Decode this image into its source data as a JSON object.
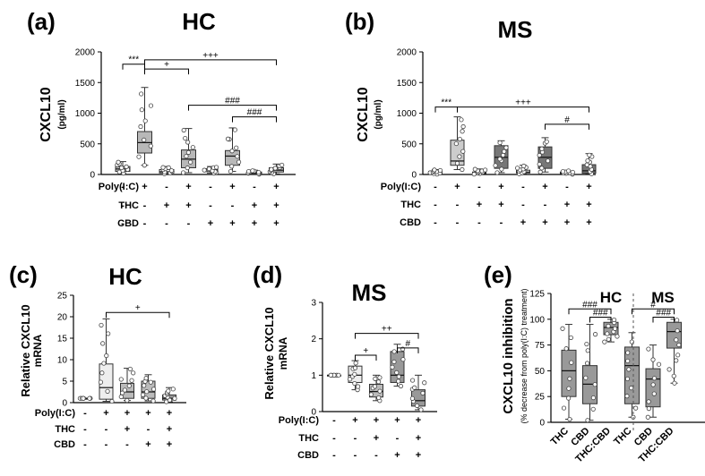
{
  "chart_data": [
    {
      "panel": "(a)",
      "title": "HC",
      "type": "box",
      "ylabel": "CXCL10",
      "yunit": "(pg/ml)",
      "ylim": [
        0,
        2000
      ],
      "yticks": [
        0,
        500,
        1000,
        1500,
        2000
      ],
      "condition_rows": [
        {
          "label": "Poly(I:C)",
          "signs": [
            "-",
            "+",
            "-",
            "+",
            "-",
            "+",
            "-",
            "+"
          ]
        },
        {
          "label": "THC",
          "signs": [
            "-",
            "-",
            "+",
            "+",
            "-",
            "-",
            "+",
            "+"
          ]
        },
        {
          "label": "CBD",
          "signs": [
            "-",
            "-",
            "-",
            "-",
            "+",
            "+",
            "+",
            "+"
          ]
        }
      ],
      "series": [
        {
          "min": 20,
          "q1": 50,
          "median": 90,
          "q3": 130,
          "max": 210,
          "fill": "#b8b8b8"
        },
        {
          "min": 150,
          "q1": 350,
          "median": 520,
          "q3": 700,
          "max": 1420,
          "fill": "#b8b8b8"
        },
        {
          "min": 10,
          "q1": 25,
          "median": 45,
          "q3": 80,
          "max": 130,
          "fill": "#ffffff"
        },
        {
          "min": 30,
          "q1": 110,
          "median": 250,
          "q3": 400,
          "max": 750,
          "fill": "#b8b8b8"
        },
        {
          "min": 20,
          "q1": 45,
          "median": 75,
          "q3": 95,
          "max": 130,
          "fill": "#ffffff"
        },
        {
          "min": 50,
          "q1": 150,
          "median": 300,
          "q3": 390,
          "max": 760,
          "fill": "#b8b8b8"
        },
        {
          "min": 5,
          "q1": 15,
          "median": 25,
          "q3": 40,
          "max": 70,
          "fill": "#ffffff"
        },
        {
          "min": 10,
          "q1": 40,
          "median": 70,
          "q3": 110,
          "max": 170,
          "fill": "#b8b8b8"
        }
      ],
      "brackets": [
        {
          "from": 0,
          "to": 1,
          "value": 1800,
          "label": "***"
        },
        {
          "from": 1,
          "to": 3,
          "value": 1720,
          "label": "+"
        },
        {
          "from": 1,
          "to": 7,
          "value": 1870,
          "label": "+++"
        },
        {
          "from": 3,
          "to": 7,
          "value": 1130,
          "label": "###"
        },
        {
          "from": 5,
          "to": 7,
          "value": 940,
          "label": "###"
        }
      ]
    },
    {
      "panel": "(b)",
      "title": "MS",
      "type": "box",
      "ylabel": "CXCL10",
      "yunit": "(pg/ml)",
      "ylim": [
        0,
        2000
      ],
      "yticks": [
        0,
        500,
        1000,
        1500,
        2000
      ],
      "condition_rows": [
        {
          "label": "Poly(I:C)",
          "signs": [
            "-",
            "+",
            "-",
            "+",
            "-",
            "+",
            "-",
            "+"
          ]
        },
        {
          "label": "THC",
          "signs": [
            "-",
            "-",
            "+",
            "+",
            "-",
            "-",
            "+",
            "+"
          ]
        },
        {
          "label": "CBD",
          "signs": [
            "-",
            "-",
            "-",
            "-",
            "+",
            "+",
            "+",
            "+"
          ]
        }
      ],
      "series": [
        {
          "min": 5,
          "q1": 15,
          "median": 30,
          "q3": 50,
          "max": 80,
          "fill": "#ffffff"
        },
        {
          "min": 80,
          "q1": 150,
          "median": 220,
          "q3": 560,
          "max": 940,
          "fill": "#cccccc"
        },
        {
          "min": 5,
          "q1": 15,
          "median": 25,
          "q3": 40,
          "max": 90,
          "fill": "#ffffff"
        },
        {
          "min": 30,
          "q1": 100,
          "median": 280,
          "q3": 470,
          "max": 550,
          "fill": "#777777"
        },
        {
          "min": 10,
          "q1": 25,
          "median": 40,
          "q3": 70,
          "max": 150,
          "fill": "#ffffff"
        },
        {
          "min": 40,
          "q1": 100,
          "median": 280,
          "q3": 450,
          "max": 600,
          "fill": "#777777"
        },
        {
          "min": 5,
          "q1": 15,
          "median": 25,
          "q3": 40,
          "max": 60,
          "fill": "#ffffff"
        },
        {
          "min": 10,
          "q1": 20,
          "median": 60,
          "q3": 160,
          "max": 340,
          "fill": "#777777"
        }
      ],
      "brackets": [
        {
          "from": 0,
          "to": 1,
          "value": 1100,
          "label": "***"
        },
        {
          "from": 1,
          "to": 7,
          "value": 1100,
          "label": "+++"
        },
        {
          "from": 5,
          "to": 7,
          "value": 820,
          "label": "#"
        }
      ]
    },
    {
      "panel": "(c)",
      "title": "HC",
      "type": "box",
      "ylabel": "Relative CXCL10",
      "yunit": "mRNA",
      "ylim": [
        0,
        25
      ],
      "yticks": [
        0,
        5,
        10,
        15,
        20,
        25
      ],
      "condition_rows": [
        {
          "label": "Poly(I:C)",
          "signs": [
            "-",
            "+",
            "+",
            "+",
            "+"
          ]
        },
        {
          "label": "THC",
          "signs": [
            "-",
            "-",
            "+",
            "-",
            "+"
          ]
        },
        {
          "label": "CBD",
          "signs": [
            "-",
            "-",
            "-",
            "+",
            "+"
          ]
        }
      ],
      "series": [
        {
          "min": 1,
          "q1": 1,
          "median": 1,
          "q3": 1,
          "max": 1,
          "fill": "#ffffff"
        },
        {
          "min": 0.3,
          "q1": 0.8,
          "median": 3.5,
          "q3": 9,
          "max": 19.5,
          "fill": "#eeeeee"
        },
        {
          "min": 0.5,
          "q1": 1,
          "median": 2.5,
          "q3": 4.5,
          "max": 8,
          "fill": "#bbbbbb"
        },
        {
          "min": 0.4,
          "q1": 1,
          "median": 2.5,
          "q3": 5,
          "max": 6.5,
          "fill": "#bbbbbb"
        },
        {
          "min": 0.2,
          "q1": 0.6,
          "median": 1,
          "q3": 1.8,
          "max": 3.5,
          "fill": "#999999"
        }
      ],
      "brackets": [
        {
          "from": 1,
          "to": 4,
          "value": 21,
          "label": "+"
        }
      ]
    },
    {
      "panel": "(d)",
      "title": "MS",
      "type": "box",
      "ylabel": "Relative CXCL10",
      "yunit": "mRNA",
      "ylim": [
        0,
        3
      ],
      "yticks": [
        0,
        1,
        2,
        3
      ],
      "condition_rows": [
        {
          "label": "Poly(I:C)",
          "signs": [
            "-",
            "+",
            "+",
            "+",
            "+"
          ]
        },
        {
          "label": "THC",
          "signs": [
            "-",
            "-",
            "+",
            "-",
            "+"
          ]
        },
        {
          "label": "CBD",
          "signs": [
            "-",
            "-",
            "-",
            "+",
            "+"
          ]
        }
      ],
      "series": [
        {
          "min": 1,
          "q1": 1,
          "median": 1,
          "q3": 1,
          "max": 1,
          "fill": "#ffffff"
        },
        {
          "min": 0.6,
          "q1": 0.8,
          "median": 1.0,
          "q3": 1.25,
          "max": 1.4,
          "fill": "#eeeeee"
        },
        {
          "min": 0.3,
          "q1": 0.4,
          "median": 0.55,
          "q3": 0.75,
          "max": 1.0,
          "fill": "#bbbbbb"
        },
        {
          "min": 0.7,
          "q1": 0.8,
          "median": 1.0,
          "q3": 1.65,
          "max": 1.85,
          "fill": "#999999"
        },
        {
          "min": 0.05,
          "q1": 0.15,
          "median": 0.3,
          "q3": 0.6,
          "max": 1.0,
          "fill": "#999999"
        }
      ],
      "brackets": [
        {
          "from": 1,
          "to": 4,
          "value": 2.15,
          "label": "++"
        },
        {
          "from": 1,
          "to": 2,
          "value": 1.55,
          "label": "+"
        },
        {
          "from": 3,
          "to": 4,
          "value": 1.75,
          "label": "#"
        }
      ]
    },
    {
      "panel": "(e)",
      "type": "box",
      "ylabel": "CXCL10 inhibition",
      "yunit": "(% decrease from poly(I:C) treatment)",
      "ylim": [
        0,
        125
      ],
      "yticks": [
        0,
        25,
        50,
        75,
        100,
        125
      ],
      "groups": [
        "HC",
        "MS"
      ],
      "categories": [
        "THC",
        "CBD",
        "THC:CBD",
        "THC",
        "CBD",
        "THC:CBD"
      ],
      "series": [
        {
          "min": 3,
          "q1": 25,
          "median": 50,
          "q3": 70,
          "max": 95,
          "fill": "#999999"
        },
        {
          "min": 2,
          "q1": 18,
          "median": 37,
          "q3": 55,
          "max": 95,
          "fill": "#999999"
        },
        {
          "min": 78,
          "q1": 85,
          "median": 92,
          "q3": 97,
          "max": 100,
          "fill": "#999999"
        },
        {
          "min": 5,
          "q1": 18,
          "median": 55,
          "q3": 73,
          "max": 87,
          "fill": "#999999"
        },
        {
          "min": 5,
          "q1": 15,
          "median": 42,
          "q3": 52,
          "max": 75,
          "fill": "#999999"
        },
        {
          "min": 38,
          "q1": 72,
          "median": 88,
          "q3": 97,
          "max": 100,
          "fill": "#999999"
        }
      ],
      "brackets": [
        {
          "from": 0,
          "to": 2,
          "value": 110,
          "label": "###"
        },
        {
          "from": 1,
          "to": 2,
          "value": 102,
          "label": "###"
        },
        {
          "from": 3,
          "to": 5,
          "value": 110,
          "label": "#"
        },
        {
          "from": 4,
          "to": 5,
          "value": 102,
          "label": "###"
        }
      ]
    }
  ]
}
